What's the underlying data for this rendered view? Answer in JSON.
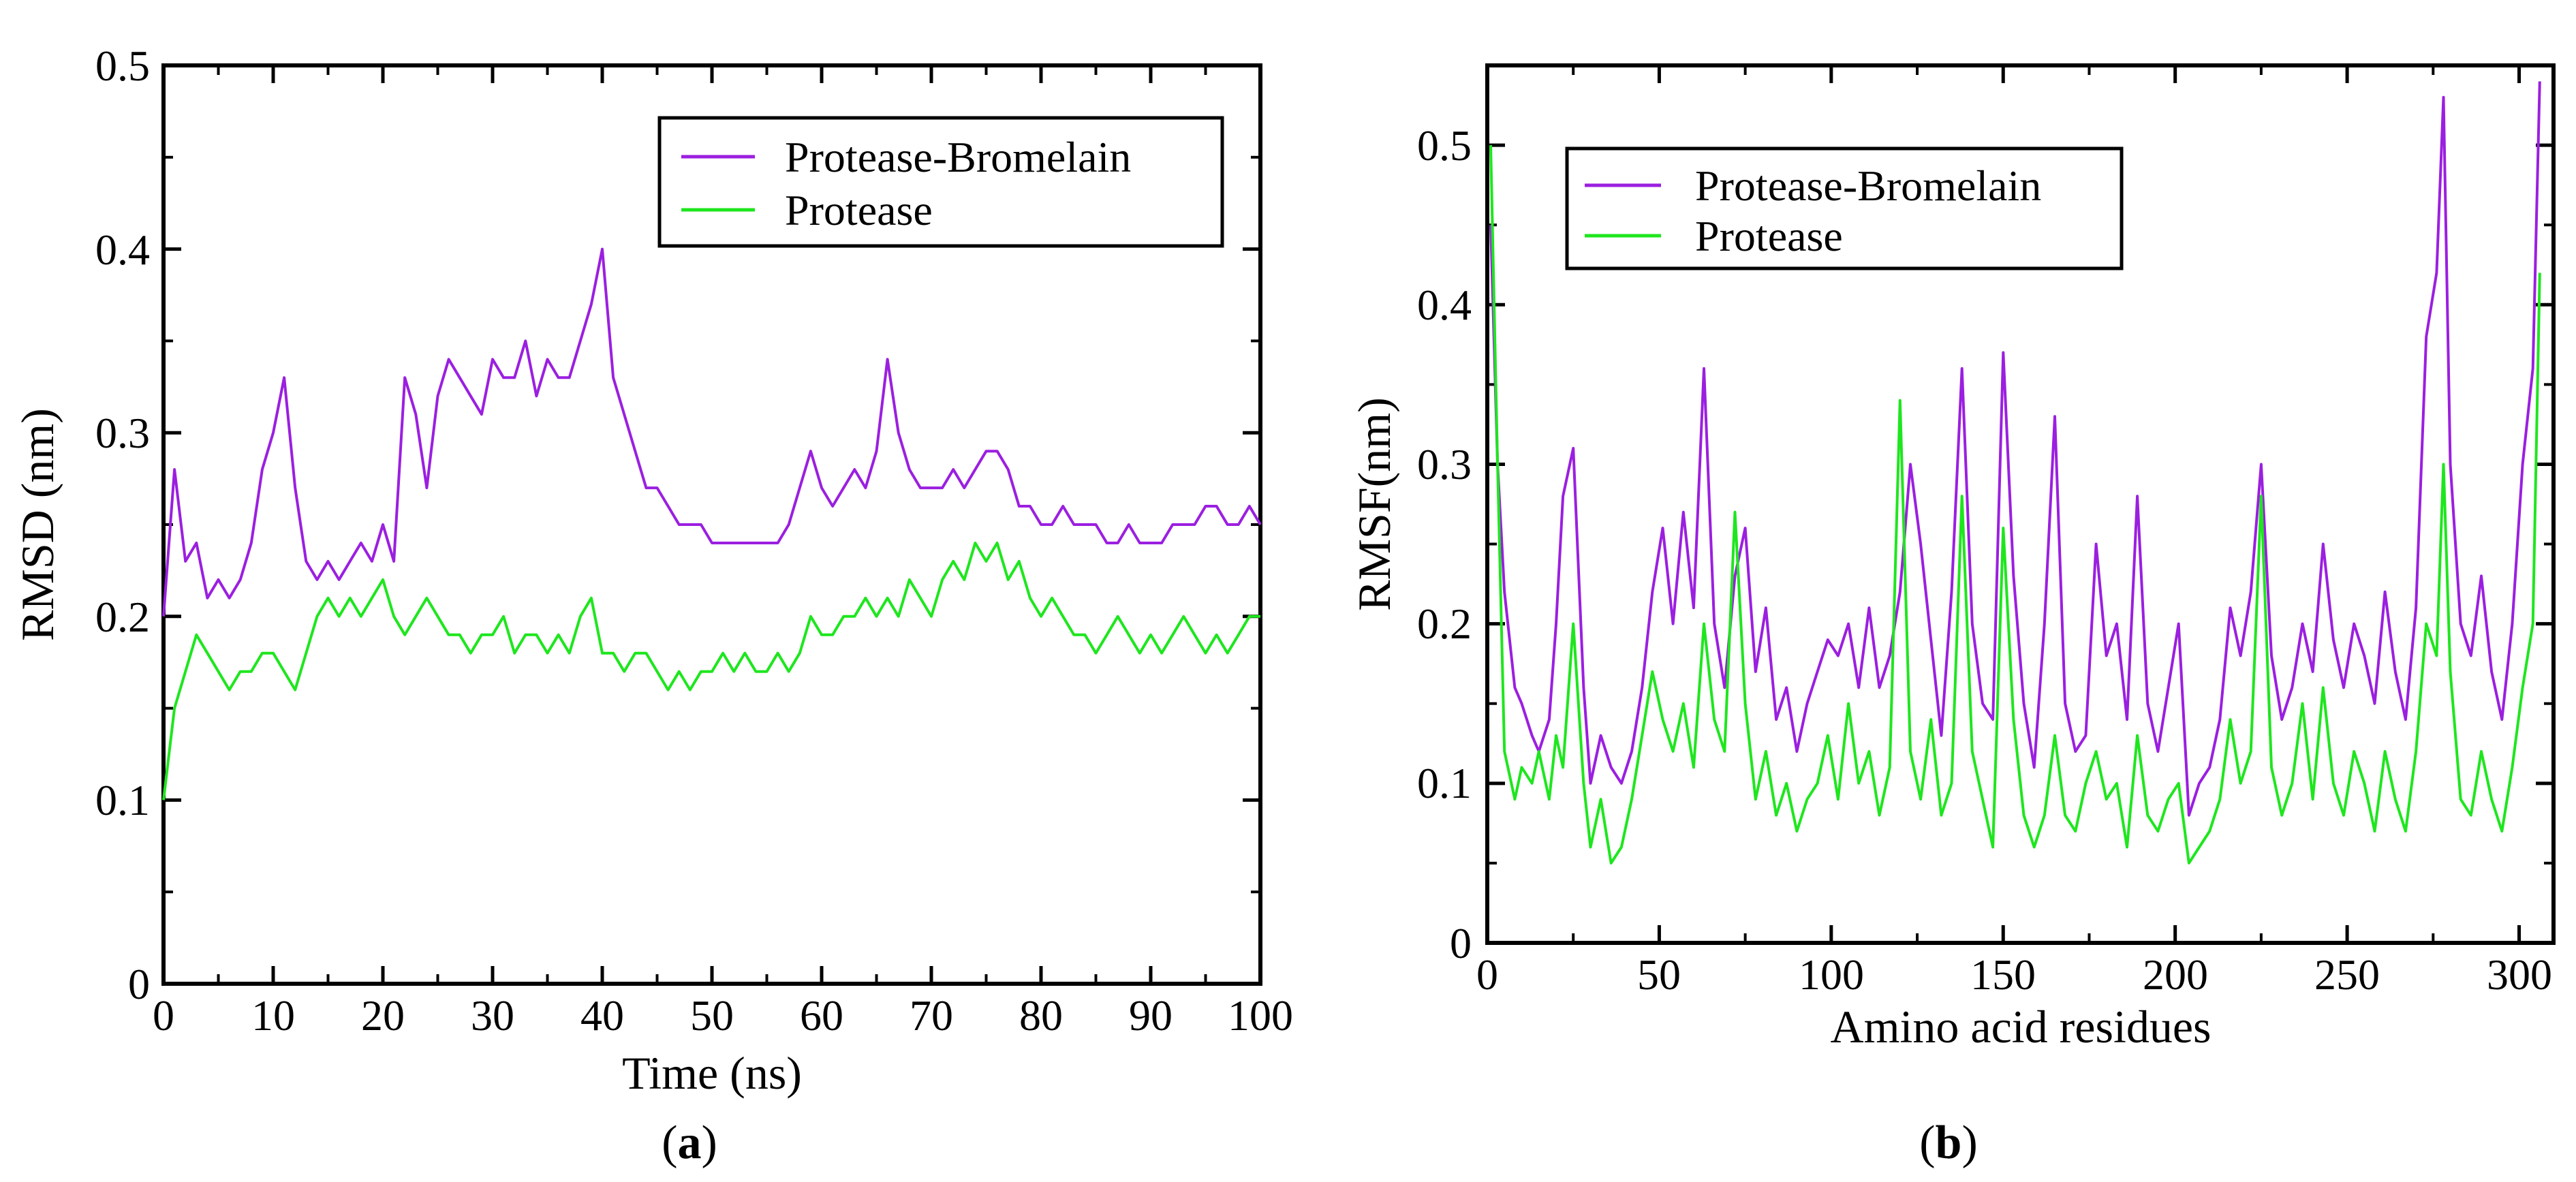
{
  "chart_data": [
    {
      "type": "line",
      "panel_label": "a",
      "title": "",
      "xlabel": "Time (ns)",
      "ylabel": "RMSD (nm)",
      "xlim": [
        0,
        100
      ],
      "ylim": [
        0,
        0.5
      ],
      "xticks": [
        0,
        10,
        20,
        30,
        40,
        50,
        60,
        70,
        80,
        90,
        100
      ],
      "yticks": [
        0,
        0.1,
        0.2,
        0.3,
        0.4,
        0.5
      ],
      "xtick_labels": [
        "0",
        "10",
        "20",
        "30",
        "40",
        "50",
        "60",
        "70",
        "80",
        "90",
        "100"
      ],
      "ytick_labels": [
        "0",
        "0.1",
        "0.2",
        "0.3",
        "0.4",
        "0.5"
      ],
      "legend_position": "top-right",
      "grid": false,
      "series": [
        {
          "name": "Protease-Bromelain",
          "color": "#9b1fe0",
          "x": [
            0,
            1,
            2,
            3,
            4,
            5,
            6,
            7,
            8,
            9,
            10,
            11,
            12,
            13,
            14,
            15,
            16,
            17,
            18,
            19,
            20,
            21,
            22,
            23,
            24,
            25,
            26,
            27,
            28,
            29,
            30,
            31,
            32,
            33,
            34,
            35,
            36,
            37,
            38,
            39,
            40,
            41,
            42,
            43,
            44,
            45,
            46,
            47,
            48,
            49,
            50,
            51,
            52,
            53,
            54,
            55,
            56,
            57,
            58,
            59,
            60,
            61,
            62,
            63,
            64,
            65,
            66,
            67,
            68,
            69,
            70,
            71,
            72,
            73,
            74,
            75,
            76,
            77,
            78,
            79,
            80,
            81,
            82,
            83,
            84,
            85,
            86,
            87,
            88,
            89,
            90,
            91,
            92,
            93,
            94,
            95,
            96,
            97,
            98,
            99,
            100
          ],
          "y": [
            0.2,
            0.28,
            0.23,
            0.24,
            0.21,
            0.22,
            0.21,
            0.22,
            0.24,
            0.28,
            0.3,
            0.33,
            0.27,
            0.23,
            0.22,
            0.23,
            0.22,
            0.23,
            0.24,
            0.23,
            0.25,
            0.23,
            0.33,
            0.31,
            0.27,
            0.32,
            0.34,
            0.33,
            0.32,
            0.31,
            0.34,
            0.33,
            0.33,
            0.35,
            0.32,
            0.34,
            0.33,
            0.33,
            0.35,
            0.37,
            0.4,
            0.33,
            0.31,
            0.29,
            0.27,
            0.27,
            0.26,
            0.25,
            0.25,
            0.25,
            0.24,
            0.24,
            0.24,
            0.24,
            0.24,
            0.24,
            0.24,
            0.25,
            0.27,
            0.29,
            0.27,
            0.26,
            0.27,
            0.28,
            0.27,
            0.29,
            0.34,
            0.3,
            0.28,
            0.27,
            0.27,
            0.27,
            0.28,
            0.27,
            0.28,
            0.29,
            0.29,
            0.28,
            0.26,
            0.26,
            0.25,
            0.25,
            0.26,
            0.25,
            0.25,
            0.25,
            0.24,
            0.24,
            0.25,
            0.24,
            0.24,
            0.24,
            0.25,
            0.25,
            0.25,
            0.26,
            0.26,
            0.25,
            0.25,
            0.26,
            0.25
          ]
        },
        {
          "name": "Protease",
          "color": "#1ee61e",
          "x": [
            0,
            1,
            2,
            3,
            4,
            5,
            6,
            7,
            8,
            9,
            10,
            11,
            12,
            13,
            14,
            15,
            16,
            17,
            18,
            19,
            20,
            21,
            22,
            23,
            24,
            25,
            26,
            27,
            28,
            29,
            30,
            31,
            32,
            33,
            34,
            35,
            36,
            37,
            38,
            39,
            40,
            41,
            42,
            43,
            44,
            45,
            46,
            47,
            48,
            49,
            50,
            51,
            52,
            53,
            54,
            55,
            56,
            57,
            58,
            59,
            60,
            61,
            62,
            63,
            64,
            65,
            66,
            67,
            68,
            69,
            70,
            71,
            72,
            73,
            74,
            75,
            76,
            77,
            78,
            79,
            80,
            81,
            82,
            83,
            84,
            85,
            86,
            87,
            88,
            89,
            90,
            91,
            92,
            93,
            94,
            95,
            96,
            97,
            98,
            99,
            100
          ],
          "y": [
            0.1,
            0.15,
            0.17,
            0.19,
            0.18,
            0.17,
            0.16,
            0.17,
            0.17,
            0.18,
            0.18,
            0.17,
            0.16,
            0.18,
            0.2,
            0.21,
            0.2,
            0.21,
            0.2,
            0.21,
            0.22,
            0.2,
            0.19,
            0.2,
            0.21,
            0.2,
            0.19,
            0.19,
            0.18,
            0.19,
            0.19,
            0.2,
            0.18,
            0.19,
            0.19,
            0.18,
            0.19,
            0.18,
            0.2,
            0.21,
            0.18,
            0.18,
            0.17,
            0.18,
            0.18,
            0.17,
            0.16,
            0.17,
            0.16,
            0.17,
            0.17,
            0.18,
            0.17,
            0.18,
            0.17,
            0.17,
            0.18,
            0.17,
            0.18,
            0.2,
            0.19,
            0.19,
            0.2,
            0.2,
            0.21,
            0.2,
            0.21,
            0.2,
            0.22,
            0.21,
            0.2,
            0.22,
            0.23,
            0.22,
            0.24,
            0.23,
            0.24,
            0.22,
            0.23,
            0.21,
            0.2,
            0.21,
            0.2,
            0.19,
            0.19,
            0.18,
            0.19,
            0.2,
            0.19,
            0.18,
            0.19,
            0.18,
            0.19,
            0.2,
            0.19,
            0.18,
            0.19,
            0.18,
            0.19,
            0.2,
            0.2
          ]
        }
      ]
    },
    {
      "type": "line",
      "panel_label": "b",
      "title": "",
      "xlabel": "Amino acid residues",
      "ylabel": "RMSF(nm)",
      "xlim": [
        0,
        310
      ],
      "ylim": [
        0,
        0.55
      ],
      "xticks": [
        0,
        50,
        100,
        150,
        200,
        250,
        300
      ],
      "yticks": [
        0,
        0.1,
        0.2,
        0.3,
        0.4,
        0.5
      ],
      "xtick_labels": [
        "0",
        "50",
        "100",
        "150",
        "200",
        "250",
        "300"
      ],
      "ytick_labels": [
        "0",
        "0.1",
        "0.2",
        "0.3",
        "0.4",
        "0.5"
      ],
      "legend_position": "top-left",
      "grid": false,
      "series": [
        {
          "name": "Protease-Bromelain",
          "color": "#9b1fe0",
          "x": [
            1,
            3,
            5,
            8,
            10,
            13,
            15,
            18,
            20,
            22,
            25,
            28,
            30,
            33,
            36,
            39,
            42,
            45,
            48,
            51,
            54,
            57,
            60,
            63,
            66,
            69,
            72,
            75,
            78,
            81,
            84,
            87,
            90,
            93,
            96,
            99,
            102,
            105,
            108,
            111,
            114,
            117,
            120,
            123,
            126,
            129,
            132,
            135,
            138,
            141,
            144,
            147,
            150,
            153,
            156,
            159,
            162,
            165,
            168,
            171,
            174,
            177,
            180,
            183,
            186,
            189,
            192,
            195,
            198,
            201,
            204,
            207,
            210,
            213,
            216,
            219,
            222,
            225,
            228,
            231,
            234,
            237,
            240,
            243,
            246,
            249,
            252,
            255,
            258,
            261,
            264,
            267,
            270,
            273,
            276,
            278,
            280,
            283,
            286,
            289,
            292,
            295,
            298,
            301,
            304,
            306
          ],
          "y": [
            0.45,
            0.3,
            0.22,
            0.16,
            0.15,
            0.13,
            0.12,
            0.14,
            0.2,
            0.28,
            0.31,
            0.16,
            0.1,
            0.13,
            0.11,
            0.1,
            0.12,
            0.16,
            0.22,
            0.26,
            0.2,
            0.27,
            0.21,
            0.36,
            0.2,
            0.16,
            0.23,
            0.26,
            0.17,
            0.21,
            0.14,
            0.16,
            0.12,
            0.15,
            0.17,
            0.19,
            0.18,
            0.2,
            0.16,
            0.21,
            0.16,
            0.18,
            0.22,
            0.3,
            0.25,
            0.19,
            0.13,
            0.22,
            0.36,
            0.2,
            0.15,
            0.14,
            0.37,
            0.23,
            0.15,
            0.11,
            0.2,
            0.33,
            0.15,
            0.12,
            0.13,
            0.25,
            0.18,
            0.2,
            0.14,
            0.28,
            0.15,
            0.12,
            0.16,
            0.2,
            0.08,
            0.1,
            0.11,
            0.14,
            0.21,
            0.18,
            0.22,
            0.3,
            0.18,
            0.14,
            0.16,
            0.2,
            0.17,
            0.25,
            0.19,
            0.16,
            0.2,
            0.18,
            0.15,
            0.22,
            0.17,
            0.14,
            0.21,
            0.38,
            0.42,
            0.53,
            0.3,
            0.2,
            0.18,
            0.23,
            0.17,
            0.14,
            0.2,
            0.3,
            0.36,
            0.54
          ]
        },
        {
          "name": "Protease",
          "color": "#1ee61e",
          "x": [
            1,
            3,
            5,
            8,
            10,
            13,
            15,
            18,
            20,
            22,
            25,
            28,
            30,
            33,
            36,
            39,
            42,
            45,
            48,
            51,
            54,
            57,
            60,
            63,
            66,
            69,
            72,
            75,
            78,
            81,
            84,
            87,
            90,
            93,
            96,
            99,
            102,
            105,
            108,
            111,
            114,
            117,
            120,
            123,
            126,
            129,
            132,
            135,
            138,
            141,
            144,
            147,
            150,
            153,
            156,
            159,
            162,
            165,
            168,
            171,
            174,
            177,
            180,
            183,
            186,
            189,
            192,
            195,
            198,
            201,
            204,
            207,
            210,
            213,
            216,
            219,
            222,
            225,
            228,
            231,
            234,
            237,
            240,
            243,
            246,
            249,
            252,
            255,
            258,
            261,
            264,
            267,
            270,
            273,
            276,
            278,
            280,
            283,
            286,
            289,
            292,
            295,
            298,
            301,
            304,
            306
          ],
          "y": [
            0.5,
            0.3,
            0.12,
            0.09,
            0.11,
            0.1,
            0.12,
            0.09,
            0.13,
            0.11,
            0.2,
            0.1,
            0.06,
            0.09,
            0.05,
            0.06,
            0.09,
            0.13,
            0.17,
            0.14,
            0.12,
            0.15,
            0.11,
            0.2,
            0.14,
            0.12,
            0.27,
            0.15,
            0.09,
            0.12,
            0.08,
            0.1,
            0.07,
            0.09,
            0.1,
            0.13,
            0.09,
            0.15,
            0.1,
            0.12,
            0.08,
            0.11,
            0.34,
            0.12,
            0.09,
            0.14,
            0.08,
            0.1,
            0.28,
            0.12,
            0.09,
            0.06,
            0.26,
            0.14,
            0.08,
            0.06,
            0.08,
            0.13,
            0.08,
            0.07,
            0.1,
            0.12,
            0.09,
            0.1,
            0.06,
            0.13,
            0.08,
            0.07,
            0.09,
            0.1,
            0.05,
            0.06,
            0.07,
            0.09,
            0.14,
            0.1,
            0.12,
            0.28,
            0.11,
            0.08,
            0.1,
            0.15,
            0.09,
            0.16,
            0.1,
            0.08,
            0.12,
            0.1,
            0.07,
            0.12,
            0.09,
            0.07,
            0.12,
            0.2,
            0.18,
            0.3,
            0.17,
            0.09,
            0.08,
            0.12,
            0.09,
            0.07,
            0.11,
            0.16,
            0.2,
            0.42
          ]
        }
      ]
    }
  ]
}
